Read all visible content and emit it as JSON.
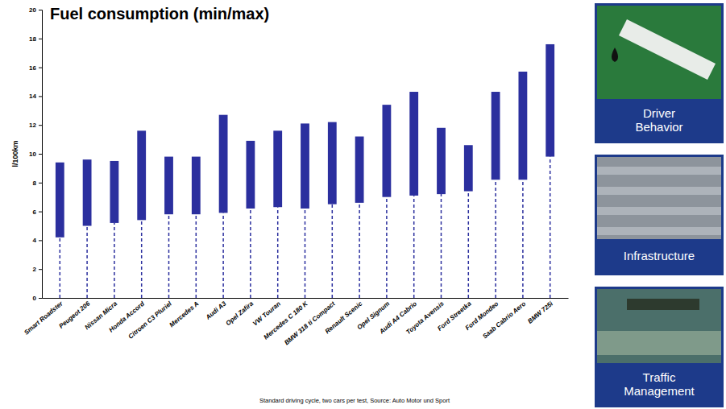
{
  "chart_data": {
    "type": "bar",
    "title": "Fuel consumption (min/max)",
    "y_label": "l/100km",
    "footnote": "Standard driving cycle, two cars per test, Source: Auto Motor und Sport",
    "categories": [
      "Smart Roadster",
      "Peugeot 206",
      "Nissan Micra",
      "Honda Accord",
      "Citroen C3 Pluriel",
      "Mercedes A",
      "Audi A3",
      "Opel Zafira",
      "VW Touran",
      "Mercedes C 180 K",
      "BMW 318 ti Compact",
      "Renault Scenic",
      "Opel Signum",
      "Audi A4 Cabrio",
      "Toyota Avensis",
      "Ford Streetka",
      "Ford Mondeo",
      "Saab Cabrio Aero",
      "BMW 725i"
    ],
    "min": [
      4.2,
      5.0,
      5.2,
      5.4,
      5.8,
      5.8,
      5.9,
      6.2,
      6.3,
      6.2,
      6.5,
      6.6,
      7.0,
      7.1,
      7.2,
      7.4,
      8.2,
      8.2,
      9.8
    ],
    "values": [
      9.4,
      9.6,
      9.5,
      11.6,
      9.8,
      9.8,
      12.7,
      10.9,
      11.6,
      12.1,
      12.2,
      11.2,
      13.4,
      14.3,
      11.8,
      10.6,
      14.3,
      15.7,
      17.6
    ],
    "color": "#2b2f9e",
    "ylim": [
      0,
      20
    ],
    "yticks": [
      0,
      2,
      4,
      6,
      8,
      10,
      12,
      14,
      16,
      18,
      20
    ],
    "grid": false
  },
  "side_panels": [
    {
      "label": "Driver Behavior"
    },
    {
      "label": "Infrastructure"
    },
    {
      "label": "Traffic Management"
    }
  ]
}
